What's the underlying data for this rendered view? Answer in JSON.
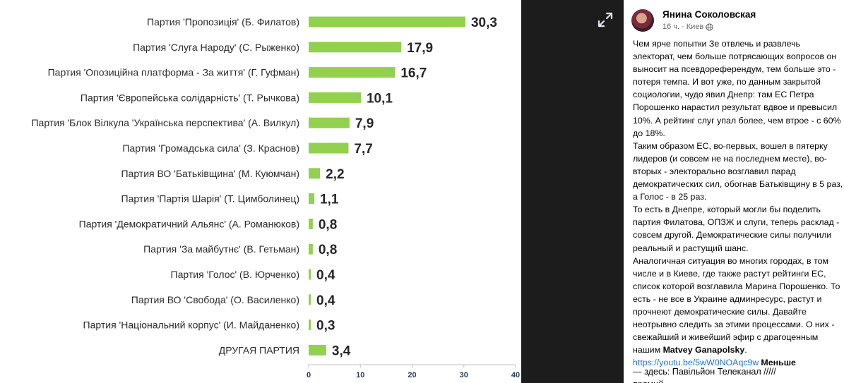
{
  "chart_data": {
    "type": "bar",
    "orientation": "horizontal",
    "categories": [
      "Партия 'Пропозиція' (Б. Филатов)",
      "Партия 'Слуга Народу' (С. Рыженко)",
      "Партия 'Опозиційна платформа - За життя' (Г. Гуфман)",
      "Партия 'Європейська солідарність' (Т. Рычкова)",
      "Партия 'Блок Вілкула 'Українська перспектива' (А. Вилкул)",
      "Партия 'Громадська сила' (З. Краснов)",
      "Партия ВО 'Батьківщина' (М. Куюмчан)",
      "Партия 'Партія Шарія' (Т. Цимболинец)",
      "Партия 'Демократичний Альянс' (А. Романюков)",
      "Партия 'За майбутнє' (В. Гетьман)",
      "Партия 'Голос' (В. Юрченко)",
      "Партия ВО 'Свобода' (О. Василенко)",
      "Партия 'Національний корпус' (И. Майданенко)",
      "ДРУГАЯ ПАРТИЯ"
    ],
    "values": [
      30.3,
      17.9,
      16.7,
      10.1,
      7.9,
      7.7,
      2.2,
      1.1,
      0.8,
      0.8,
      0.4,
      0.4,
      0.3,
      3.4
    ],
    "value_labels": [
      "30,3",
      "17,9",
      "16,7",
      "10,1",
      "7,9",
      "7,7",
      "2,2",
      "1,1",
      "0,8",
      "0,8",
      "0,4",
      "0,4",
      "0,3",
      "3,4"
    ],
    "x_ticks": [
      "0",
      "10",
      "20",
      "30",
      "40"
    ],
    "xlim": [
      0,
      40
    ],
    "grid": false,
    "bar_color": "#92d050",
    "title": "",
    "xlabel": "",
    "ylabel": ""
  },
  "viewer": {
    "expand_icon": "expand-arrows-icon"
  },
  "post": {
    "author": "Янина Соколовская",
    "time": "16 ч.",
    "separator": "·",
    "location": "Киев",
    "privacy_icon": "globe-icon",
    "body": "Чем ярче попытки Зе отвлечь и развлечь электорат, чем больше потрясающих вопросов он выносит на псевдореферендум, тем больше это - потеря темпа. И вот уже, по данным закрытой социологии, чудо явил Днепр: там ЕС Петра Порошенко нарастил результат вдвое и превысил 10%. А рейтинг слуг упал более, чем втрое - с 60% до 18%.\nТаким образом ЕС, во-первых, вошел в пятерку лидеров (и совсем не на последнем месте), во-вторых - электорально возглавил парад демократических сил, обогнав Батьківщину в 5 раз, а Голос - в 25 раз.\nТо есть в Днепре, который могли бы поделить партия Филатова, ОПЗЖ и слуги, теперь расклад - совсем другой. Демократические силы получили реальный и растущий шанс.\nАналогичная ситуация во многих городах, в том числе и в Киеве, где также растут рейтинги ЕС, список которой возглавила Марина Порошенко. То есть - не все в Украине админресурс, растут и прочнеют демократические силы. Давайте неотрывно следить за этими процессами. О них - свежайший и живейший эфир с драгоценным нашим",
    "mention": "Matvey Ganapolsky",
    "mention_suffix": ".",
    "link": "https://youtu.be/5wW0NOAqc9w",
    "more_label": "Меньше",
    "next_line": "— здесь: Павільйон Телеканал /////\nпрямий"
  }
}
